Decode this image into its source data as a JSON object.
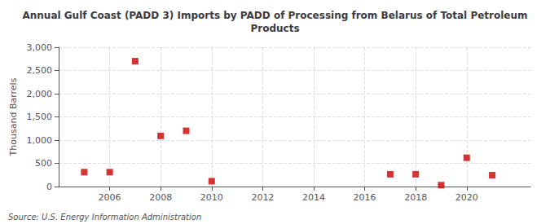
{
  "chart_data": {
    "type": "scatter",
    "title": "Annual Gulf Coast (PADD 3) Imports by PADD of Processing from Belarus of Total Petroleum\nProducts",
    "ylabel": "Thousand Barrels",
    "annotations": [
      "Source: U.S. Energy Information Administration"
    ],
    "x": [
      2005,
      2006,
      2007,
      2008,
      2009,
      2010,
      2017,
      2018,
      2019,
      2020,
      2021
    ],
    "values": [
      310,
      310,
      2700,
      1090,
      1200,
      115,
      265,
      265,
      30,
      620,
      245
    ],
    "color": "#cc0000",
    "marker": "square",
    "xlim": [
      2004,
      2022.5
    ],
    "xticks": [
      2006,
      2008,
      2010,
      2012,
      2014,
      2016,
      2018,
      2020
    ],
    "ylim": [
      0,
      3000
    ],
    "yticks": [
      0,
      500,
      {
        "value": 1000,
        "label": "1,000"
      },
      {
        "value": 1500,
        "label": "1,500"
      },
      {
        "value": 2000,
        "label": "2,000"
      },
      {
        "value": 2500,
        "label": "2,500"
      },
      {
        "value": 3000,
        "label": "3,000"
      }
    ],
    "grid": true
  }
}
